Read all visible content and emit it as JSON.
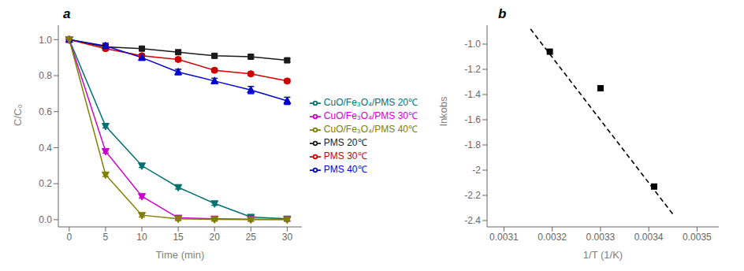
{
  "chart_data": [
    {
      "type": "line",
      "x": [
        0,
        5,
        10,
        15,
        20,
        25,
        30
      ],
      "xlabel": "Time (min)",
      "ylabel": "C/C₀",
      "annotations": [
        "a"
      ],
      "xlim": [
        -1.5,
        32
      ],
      "xticks": [
        0,
        5,
        10,
        15,
        20,
        25,
        30
      ],
      "ylim": [
        -0.04,
        1.08
      ],
      "yticks": [
        {
          "value": 0,
          "label": "0.0"
        },
        0.2,
        0.4,
        0.6,
        0.8,
        {
          "value": 1,
          "label": "1.0"
        }
      ],
      "grid": false,
      "legend": "right",
      "series": [
        {
          "name": "PMS 20℃",
          "color": "#1a1a1a",
          "marker": "square",
          "values": [
            1.0,
            0.96,
            0.95,
            0.93,
            0.91,
            0.905,
            0.885
          ],
          "errors": [
            0.0,
            0.01,
            0.01,
            0.01,
            0.01,
            0.01,
            0.01
          ]
        },
        {
          "name": "PMS 30℃",
          "color": "#cc0000",
          "marker": "circle",
          "values": [
            1.0,
            0.95,
            0.91,
            0.89,
            0.83,
            0.81,
            0.77
          ],
          "errors": [
            0.0,
            0.01,
            0.01,
            0.01,
            0.01,
            0.01,
            0.01
          ]
        },
        {
          "name": "PMS 40℃",
          "color": "#0000cc",
          "marker": "triangle-up",
          "values": [
            1.0,
            0.965,
            0.9,
            0.82,
            0.77,
            0.72,
            0.66
          ],
          "errors": [
            0.0,
            0.015,
            0.015,
            0.015,
            0.015,
            0.02,
            0.02
          ]
        },
        {
          "name": "CuO/Fe₃O₄/PMS 20℃",
          "color": "#007070",
          "marker": "triangle-down",
          "values": [
            1.0,
            0.52,
            0.3,
            0.18,
            0.09,
            0.015,
            0.005
          ],
          "errors": [
            0.0,
            0.01,
            0.01,
            0.01,
            0.01,
            0.01,
            0.01
          ]
        },
        {
          "name": "CuO/Fe₃O₄/PMS 30℃",
          "color": "#cc00cc",
          "marker": "triangle-down",
          "values": [
            1.0,
            0.38,
            0.13,
            0.01,
            0.005,
            0.003,
            0.002
          ],
          "errors": [
            0.0,
            0.01,
            0.01,
            0.01,
            0.01,
            0.01,
            0.01
          ]
        },
        {
          "name": "CuO/Fe₃O₄/PMS 40℃",
          "color": "#808000",
          "marker": "triangle-down",
          "values": [
            1.0,
            0.25,
            0.025,
            0.005,
            0.002,
            0.001,
            0.001
          ],
          "errors": [
            0.0,
            0.01,
            0.01,
            0.01,
            0.01,
            0.01,
            0.01
          ]
        }
      ]
    },
    {
      "type": "scatter",
      "xlabel": "1/T (1/K)",
      "ylabel": "lnkobs",
      "annotations": [
        "b"
      ],
      "xlim": [
        0.003065,
        0.003545
      ],
      "xticks": [
        0.0031,
        0.0032,
        0.0033,
        0.0034,
        0.0035
      ],
      "ylim": [
        -2.45,
        -0.85
      ],
      "yticks": [
        -2.4,
        -2.2,
        -2.0,
        -1.8,
        -1.6,
        -1.4,
        -1.2,
        {
          "value": -1.0,
          "label": "-1.0"
        }
      ],
      "grid": false,
      "series": [
        {
          "type": "scatter",
          "color": "#000000",
          "marker": "square",
          "x": [
            0.003195,
            0.0033,
            0.003411
          ],
          "values": [
            -1.06,
            -1.35,
            -2.13
          ]
        },
        {
          "type": "line",
          "color": "#000000",
          "line_style": "dashed",
          "x": [
            0.003155,
            0.00345
          ],
          "values": [
            -0.88,
            -2.35
          ]
        }
      ]
    }
  ]
}
